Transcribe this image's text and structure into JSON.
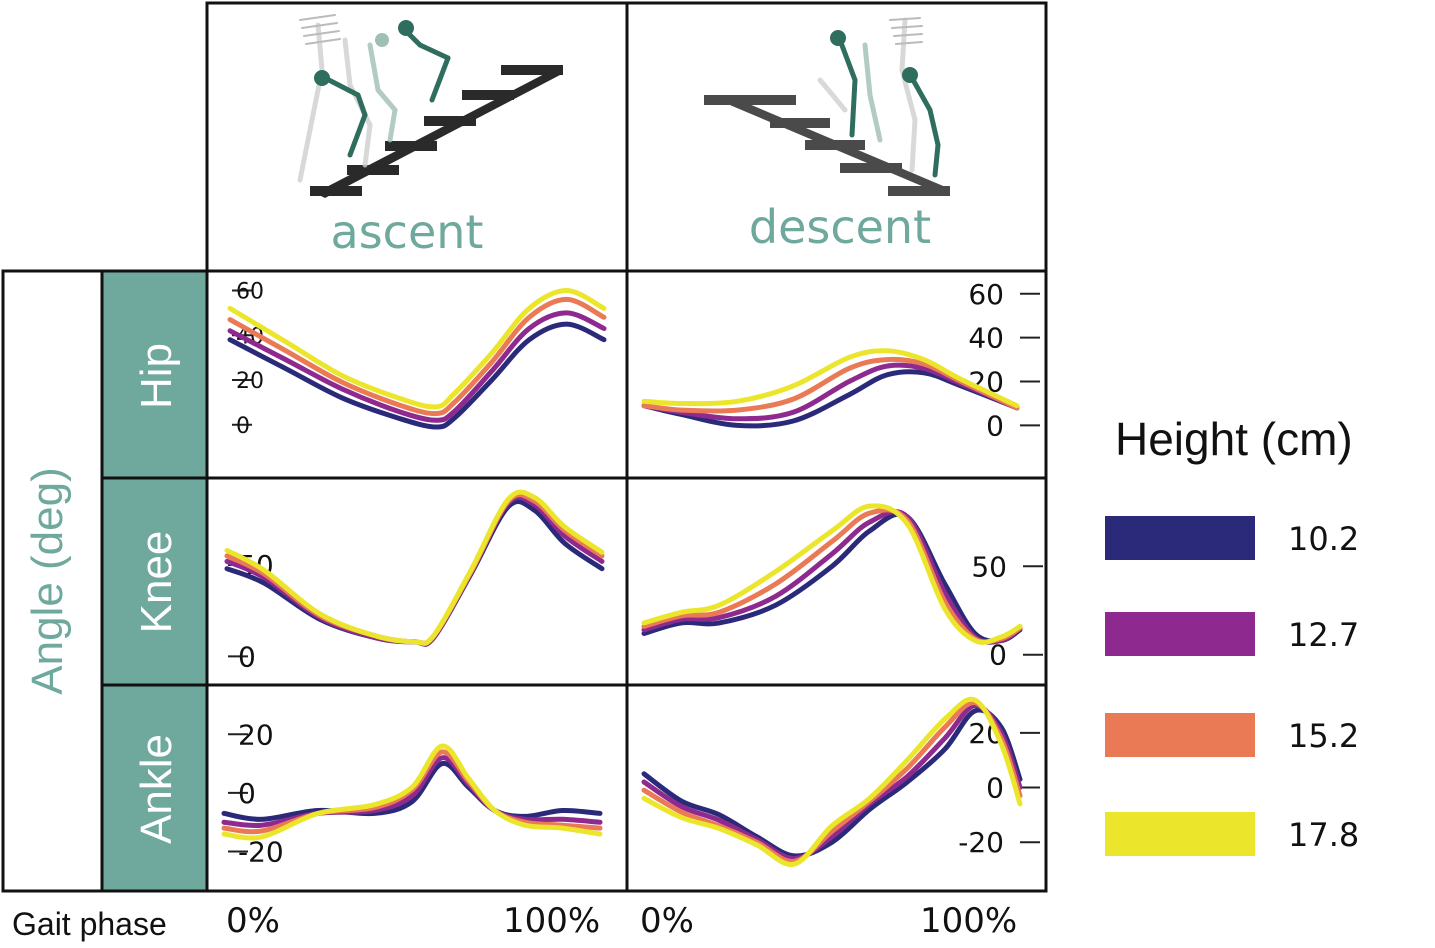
{
  "header": {
    "ascent_label": "ascent",
    "descent_label": "descent"
  },
  "side": {
    "ylabel": "Angle (deg)",
    "rows": [
      "Hip",
      "Knee",
      "Ankle"
    ]
  },
  "xaxis": {
    "label": "Gait phase",
    "start": "0%",
    "end": "100%"
  },
  "legend": {
    "title": "Height (cm)",
    "items": [
      {
        "label": "10.2",
        "color": "#2b2a7a"
      },
      {
        "label": "12.7",
        "color": "#8e2a8f"
      },
      {
        "label": "15.2",
        "color": "#ea7a55"
      },
      {
        "label": "17.8",
        "color": "#ebe62b"
      }
    ]
  },
  "colors": {
    "accent": "#6fa89d",
    "frame": "#111111",
    "step": "#2a2a2a",
    "skeleton": "#2f6d5e"
  },
  "chart_data": [
    {
      "type": "line",
      "panel": "hip-ascent",
      "xlabel": "Gait phase",
      "ylabel": "Angle (deg)",
      "x": [
        0,
        15,
        30,
        45,
        55,
        60,
        70,
        80,
        90,
        100
      ],
      "xlim": [
        0,
        100
      ],
      "ylim": [
        -5,
        62
      ],
      "yticks": [
        0,
        20,
        40,
        60
      ],
      "series": [
        {
          "name": "10.2",
          "values": [
            38,
            25,
            12,
            3,
            -1,
            3,
            20,
            38,
            45,
            38
          ]
        },
        {
          "name": "12.7",
          "values": [
            42,
            29,
            16,
            6,
            2,
            6,
            24,
            43,
            50,
            43
          ]
        },
        {
          "name": "15.2",
          "values": [
            47,
            33,
            19,
            9,
            5,
            10,
            28,
            48,
            56,
            48
          ]
        },
        {
          "name": "17.8",
          "values": [
            52,
            37,
            22,
            12,
            8,
            14,
            32,
            52,
            60,
            52
          ]
        }
      ]
    },
    {
      "type": "line",
      "panel": "hip-descent",
      "xlabel": "Gait phase",
      "ylabel": "Angle (deg)",
      "x": [
        0,
        10,
        25,
        40,
        55,
        65,
        75,
        85,
        100
      ],
      "xlim": [
        0,
        100
      ],
      "ylim": [
        -3,
        64
      ],
      "yticks": [
        0,
        20,
        40,
        60
      ],
      "series": [
        {
          "name": "10.2",
          "values": [
            9,
            5,
            0,
            2,
            14,
            23,
            24,
            18,
            8
          ]
        },
        {
          "name": "12.7",
          "values": [
            9,
            6,
            3,
            6,
            20,
            27,
            26,
            19,
            8
          ]
        },
        {
          "name": "15.2",
          "values": [
            9,
            7,
            7,
            12,
            26,
            30,
            28,
            20,
            8
          ]
        },
        {
          "name": "17.8",
          "values": [
            11,
            10,
            11,
            18,
            31,
            34,
            30,
            21,
            9
          ]
        }
      ]
    },
    {
      "type": "line",
      "panel": "knee-ascent",
      "xlabel": "Gait phase",
      "ylabel": "Angle (deg)",
      "x": [
        0,
        10,
        25,
        40,
        50,
        55,
        65,
        75,
        82,
        90,
        100
      ],
      "xlim": [
        0,
        100
      ],
      "ylim": [
        -2,
        90
      ],
      "yticks": [
        0,
        50
      ],
      "series": [
        {
          "name": "10.2",
          "values": [
            48,
            40,
            20,
            10,
            8,
            10,
            45,
            82,
            80,
            62,
            48
          ]
        },
        {
          "name": "12.7",
          "values": [
            52,
            43,
            21,
            10,
            8,
            10,
            46,
            84,
            83,
            66,
            52
          ]
        },
        {
          "name": "15.2",
          "values": [
            55,
            45,
            22,
            11,
            8,
            11,
            46,
            85,
            85,
            69,
            55
          ]
        },
        {
          "name": "17.8",
          "values": [
            58,
            47,
            23,
            11,
            8,
            11,
            47,
            86,
            87,
            71,
            57
          ]
        }
      ]
    },
    {
      "type": "line",
      "panel": "knee-descent",
      "xlabel": "Gait phase",
      "ylabel": "Angle (deg)",
      "x": [
        0,
        10,
        20,
        35,
        50,
        60,
        70,
        80,
        88,
        95,
        100
      ],
      "xlim": [
        0,
        100
      ],
      "ylim": [
        -3,
        92
      ],
      "yticks": [
        0,
        50
      ],
      "series": [
        {
          "name": "10.2",
          "values": [
            12,
            18,
            18,
            28,
            50,
            70,
            78,
            40,
            12,
            8,
            14
          ]
        },
        {
          "name": "12.7",
          "values": [
            14,
            20,
            21,
            33,
            57,
            75,
            78,
            35,
            10,
            8,
            15
          ]
        },
        {
          "name": "15.2",
          "values": [
            16,
            22,
            24,
            40,
            64,
            80,
            76,
            30,
            9,
            9,
            15
          ]
        },
        {
          "name": "17.8",
          "values": [
            18,
            24,
            28,
            47,
            70,
            84,
            74,
            26,
            8,
            10,
            16
          ]
        }
      ]
    },
    {
      "type": "line",
      "panel": "ankle-ascent",
      "xlabel": "Gait phase",
      "ylabel": "Angle (deg)",
      "x": [
        0,
        10,
        25,
        40,
        50,
        58,
        65,
        72,
        80,
        90,
        100
      ],
      "xlim": [
        0,
        100
      ],
      "ylim": [
        -28,
        30
      ],
      "yticks": [
        -20,
        0,
        20
      ],
      "series": [
        {
          "name": "10.2",
          "values": [
            -7,
            -9,
            -6,
            -7,
            -3,
            10,
            2,
            -6,
            -8,
            -6,
            -7
          ]
        },
        {
          "name": "12.7",
          "values": [
            -10,
            -11,
            -7,
            -6,
            -1,
            12,
            3,
            -6,
            -9,
            -9,
            -10
          ]
        },
        {
          "name": "15.2",
          "values": [
            -12,
            -13,
            -7,
            -5,
            1,
            14,
            4,
            -6,
            -10,
            -11,
            -12
          ]
        },
        {
          "name": "17.8",
          "values": [
            -14,
            -15,
            -7,
            -4,
            2,
            16,
            5,
            -6,
            -11,
            -12,
            -14
          ]
        }
      ]
    },
    {
      "type": "line",
      "panel": "ankle-descent",
      "xlabel": "Gait phase",
      "ylabel": "Angle (deg)",
      "x": [
        0,
        10,
        20,
        30,
        40,
        50,
        60,
        70,
        80,
        88,
        95,
        100
      ],
      "xlim": [
        0,
        100
      ],
      "ylim": [
        -32,
        32
      ],
      "yticks": [
        -20,
        0,
        20
      ],
      "series": [
        {
          "name": "10.2",
          "values": [
            5,
            -5,
            -10,
            -18,
            -25,
            -20,
            -8,
            2,
            14,
            28,
            22,
            3
          ]
        },
        {
          "name": "12.7",
          "values": [
            2,
            -7,
            -12,
            -19,
            -26,
            -18,
            -6,
            4,
            18,
            30,
            20,
            0
          ]
        },
        {
          "name": "15.2",
          "values": [
            -1,
            -9,
            -14,
            -20,
            -27,
            -16,
            -5,
            7,
            22,
            31,
            18,
            -3
          ]
        },
        {
          "name": "17.8",
          "values": [
            -4,
            -11,
            -15,
            -21,
            -28,
            -14,
            -4,
            10,
            25,
            32,
            16,
            -6
          ]
        }
      ]
    }
  ]
}
